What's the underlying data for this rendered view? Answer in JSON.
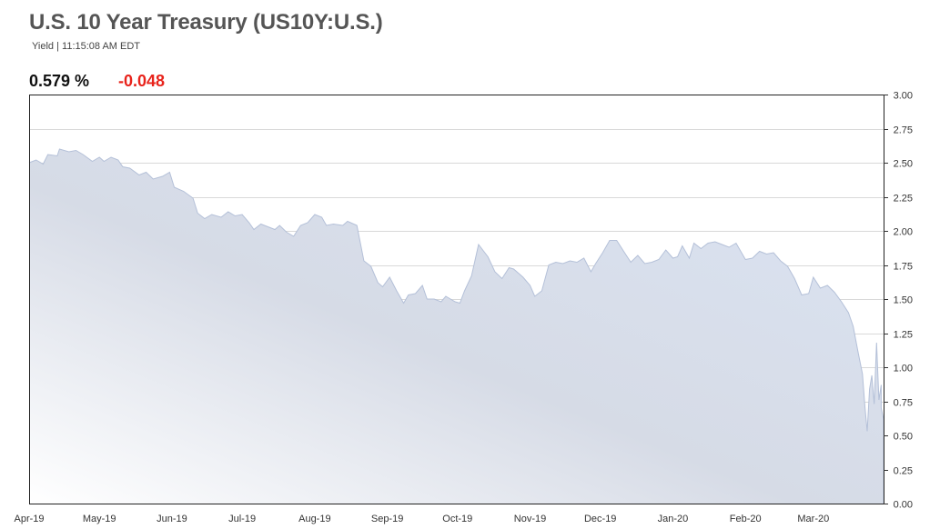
{
  "header": {
    "title": "U.S. 10 Year Treasury (US10Y:U.S.)",
    "subtitle": "Yield | 11:15:08 AM EDT",
    "price": "0.579 %",
    "change": "-0.048"
  },
  "colors": {
    "change_negative": "#e8231b",
    "area_line": "#b4c0d8",
    "area_fill_top": "#dbe4f3",
    "area_fill_mid": "#d6dbe6",
    "area_fill_bottom": "#ffffff",
    "grid": "#d9d9d9",
    "frame": "#222222"
  },
  "chart_data": {
    "type": "area",
    "title": "",
    "xlabel": "",
    "ylabel": "",
    "x_tick_labels": [
      "Apr-19",
      "May-19",
      "Jun-19",
      "Jul-19",
      "Aug-19",
      "Sep-19",
      "Oct-19",
      "Nov-19",
      "Dec-19",
      "Jan-20",
      "Feb-20",
      "Mar-20"
    ],
    "y_tick_labels": [
      "0.00",
      "0.25",
      "0.50",
      "0.75",
      "1.00",
      "1.25",
      "1.50",
      "1.75",
      "2.00",
      "2.25",
      "2.50",
      "2.75",
      "3.00"
    ],
    "ylim": [
      0,
      3
    ],
    "xlim": [
      "2019-04-01",
      "2020-03-31"
    ],
    "y_axis_position": "right",
    "grid": true,
    "legend": "none",
    "series": [
      {
        "values": [
          [
            "2019-04-01",
            2.5
          ],
          [
            "2019-04-04",
            2.52
          ],
          [
            "2019-04-07",
            2.49
          ],
          [
            "2019-04-09",
            2.56
          ],
          [
            "2019-04-13",
            2.55
          ],
          [
            "2019-04-14",
            2.6
          ],
          [
            "2019-04-18",
            2.58
          ],
          [
            "2019-04-21",
            2.59
          ],
          [
            "2019-04-24",
            2.56
          ],
          [
            "2019-04-28",
            2.51
          ],
          [
            "2019-05-01",
            2.54
          ],
          [
            "2019-05-03",
            2.51
          ],
          [
            "2019-05-06",
            2.54
          ],
          [
            "2019-05-09",
            2.52
          ],
          [
            "2019-05-11",
            2.47
          ],
          [
            "2019-05-14",
            2.46
          ],
          [
            "2019-05-18",
            2.41
          ],
          [
            "2019-05-21",
            2.43
          ],
          [
            "2019-05-24",
            2.38
          ],
          [
            "2019-05-28",
            2.4
          ],
          [
            "2019-05-31",
            2.43
          ],
          [
            "2019-06-02",
            2.32
          ],
          [
            "2019-06-06",
            2.29
          ],
          [
            "2019-06-10",
            2.24
          ],
          [
            "2019-06-12",
            2.13
          ],
          [
            "2019-06-15",
            2.09
          ],
          [
            "2019-06-18",
            2.12
          ],
          [
            "2019-06-22",
            2.1
          ],
          [
            "2019-06-25",
            2.14
          ],
          [
            "2019-06-28",
            2.11
          ],
          [
            "2019-07-01",
            2.12
          ],
          [
            "2019-07-04",
            2.06
          ],
          [
            "2019-07-06",
            2.01
          ],
          [
            "2019-07-09",
            2.05
          ],
          [
            "2019-07-12",
            2.03
          ],
          [
            "2019-07-15",
            2.01
          ],
          [
            "2019-07-17",
            2.04
          ],
          [
            "2019-07-20",
            1.99
          ],
          [
            "2019-07-23",
            1.96
          ],
          [
            "2019-07-26",
            2.04
          ],
          [
            "2019-07-29",
            2.06
          ],
          [
            "2019-08-01",
            2.12
          ],
          [
            "2019-08-04",
            2.1
          ],
          [
            "2019-08-06",
            2.04
          ],
          [
            "2019-08-09",
            2.05
          ],
          [
            "2019-08-13",
            2.04
          ],
          [
            "2019-08-15",
            2.07
          ],
          [
            "2019-08-19",
            2.04
          ],
          [
            "2019-08-22",
            1.78
          ],
          [
            "2019-08-25",
            1.74
          ],
          [
            "2019-08-28",
            1.62
          ],
          [
            "2019-08-30",
            1.59
          ],
          [
            "2019-09-02",
            1.66
          ],
          [
            "2019-09-05",
            1.56
          ],
          [
            "2019-09-08",
            1.47
          ],
          [
            "2019-09-10",
            1.53
          ],
          [
            "2019-09-13",
            1.54
          ],
          [
            "2019-09-16",
            1.6
          ],
          [
            "2019-09-18",
            1.5
          ],
          [
            "2019-09-21",
            1.5
          ],
          [
            "2019-09-24",
            1.48
          ],
          [
            "2019-09-26",
            1.52
          ],
          [
            "2019-09-30",
            1.48
          ],
          [
            "2019-10-02",
            1.47
          ],
          [
            "2019-10-04",
            1.56
          ],
          [
            "2019-10-07",
            1.67
          ],
          [
            "2019-10-10",
            1.9
          ],
          [
            "2019-10-14",
            1.81
          ],
          [
            "2019-10-17",
            1.7
          ],
          [
            "2019-10-20",
            1.65
          ],
          [
            "2019-10-23",
            1.73
          ],
          [
            "2019-10-25",
            1.72
          ],
          [
            "2019-10-29",
            1.66
          ],
          [
            "2019-11-01",
            1.6
          ],
          [
            "2019-11-03",
            1.52
          ],
          [
            "2019-11-06",
            1.56
          ],
          [
            "2019-11-09",
            1.75
          ],
          [
            "2019-11-12",
            1.77
          ],
          [
            "2019-11-15",
            1.76
          ],
          [
            "2019-11-18",
            1.78
          ],
          [
            "2019-11-21",
            1.77
          ],
          [
            "2019-11-24",
            1.8
          ],
          [
            "2019-11-27",
            1.7
          ],
          [
            "2019-11-29",
            1.76
          ],
          [
            "2019-12-02",
            1.84
          ],
          [
            "2019-12-05",
            1.93
          ],
          [
            "2019-12-08",
            1.93
          ],
          [
            "2019-12-11",
            1.85
          ],
          [
            "2019-12-14",
            1.77
          ],
          [
            "2019-12-17",
            1.82
          ],
          [
            "2019-12-20",
            1.76
          ],
          [
            "2019-12-23",
            1.77
          ],
          [
            "2019-12-26",
            1.79
          ],
          [
            "2019-12-29",
            1.86
          ],
          [
            "2020-01-01",
            1.8
          ],
          [
            "2020-01-03",
            1.81
          ],
          [
            "2020-01-05",
            1.89
          ],
          [
            "2020-01-08",
            1.8
          ],
          [
            "2020-01-10",
            1.91
          ],
          [
            "2020-01-13",
            1.87
          ],
          [
            "2020-01-16",
            1.91
          ],
          [
            "2020-01-19",
            1.92
          ],
          [
            "2020-01-22",
            1.9
          ],
          [
            "2020-01-25",
            1.88
          ],
          [
            "2020-01-28",
            1.91
          ],
          [
            "2020-02-01",
            1.79
          ],
          [
            "2020-02-04",
            1.8
          ],
          [
            "2020-02-07",
            1.85
          ],
          [
            "2020-02-10",
            1.83
          ],
          [
            "2020-02-13",
            1.84
          ],
          [
            "2020-02-16",
            1.78
          ],
          [
            "2020-02-19",
            1.74
          ],
          [
            "2020-02-22",
            1.65
          ],
          [
            "2020-02-25",
            1.53
          ],
          [
            "2020-02-28",
            1.54
          ],
          [
            "2020-03-01",
            1.66
          ],
          [
            "2020-03-04",
            1.58
          ],
          [
            "2020-03-07",
            1.6
          ],
          [
            "2020-03-10",
            1.55
          ],
          [
            "2020-03-13",
            1.48
          ],
          [
            "2020-03-16",
            1.4
          ],
          [
            "2020-03-18",
            1.3
          ],
          [
            "2020-03-20",
            1.12
          ],
          [
            "2020-03-22",
            0.95
          ],
          [
            "2020-03-23",
            0.72
          ],
          [
            "2020-03-24",
            0.53
          ],
          [
            "2020-03-25",
            0.84
          ],
          [
            "2020-03-26",
            0.94
          ],
          [
            "2020-03-27",
            0.73
          ],
          [
            "2020-03-28",
            1.18
          ],
          [
            "2020-03-29",
            0.76
          ],
          [
            "2020-03-30",
            0.87
          ],
          [
            "2020-03-30",
            0.7
          ],
          [
            "2020-03-31",
            0.62
          ],
          [
            "2020-03-31",
            0.0
          ]
        ]
      }
    ]
  }
}
